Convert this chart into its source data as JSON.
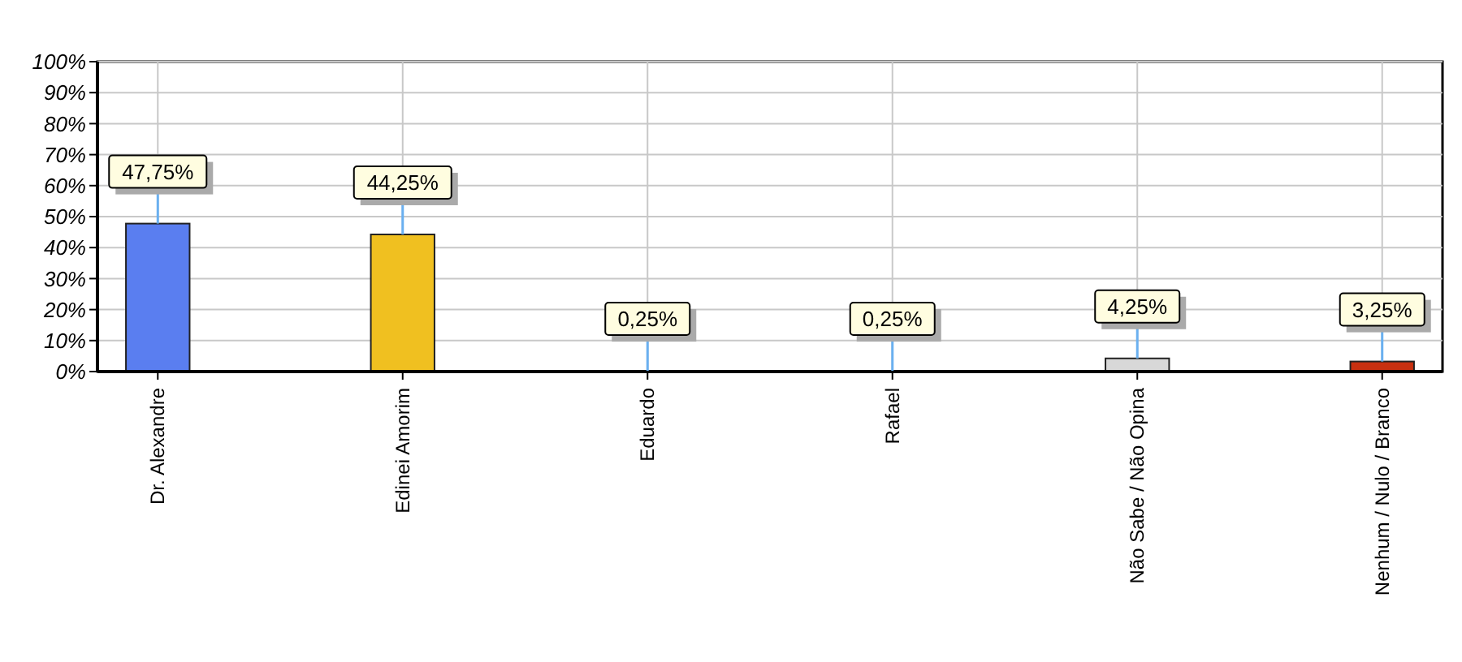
{
  "chart_data": {
    "type": "bar",
    "categories": [
      "Dr. Alexandre",
      "Edinei Amorim",
      "Eduardo",
      "Rafael",
      "Não Sabe / Não Opina",
      "Nenhum / Nulo / Branco"
    ],
    "values": [
      47.75,
      44.25,
      0.25,
      0.25,
      4.25,
      3.25
    ],
    "value_labels": [
      "47,75%",
      "44,25%",
      "0,25%",
      "0,25%",
      "4,25%",
      "3,25%"
    ],
    "colors": [
      "#5a7ef0",
      "#f0c020",
      "#5a9a10",
      "#e06a10",
      "#d8d8d8",
      "#c83010"
    ],
    "ylim": [
      0,
      100
    ],
    "yticks": [
      {
        "value": 0,
        "label": "0%"
      },
      {
        "value": 10,
        "label": "10%"
      },
      {
        "value": 20,
        "label": "20%"
      },
      {
        "value": 30,
        "label": "30%"
      },
      {
        "value": 40,
        "label": "40%"
      },
      {
        "value": 50,
        "label": "50%"
      },
      {
        "value": 60,
        "label": "60%"
      },
      {
        "value": 70,
        "label": "70%"
      },
      {
        "value": 80,
        "label": "80%"
      },
      {
        "value": 90,
        "label": "90%"
      },
      {
        "value": 100,
        "label": "100%"
      }
    ],
    "grid": true
  }
}
